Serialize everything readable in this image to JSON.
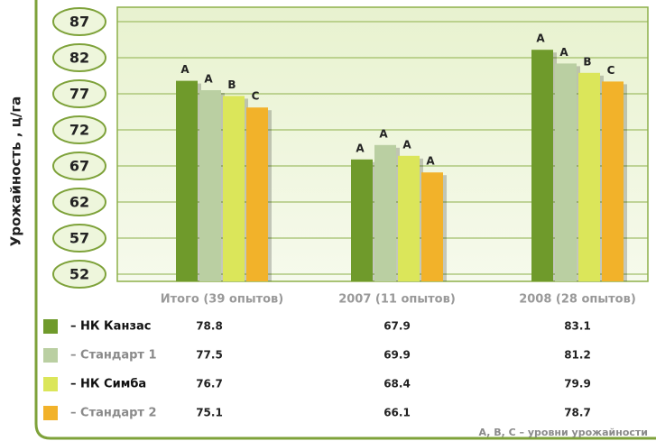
{
  "chart_data": {
    "type": "bar",
    "y_label": "Урожайность , ц/га",
    "categories": [
      "Итого (39 опытов)",
      "2007 (11 опытов)",
      "2008 (28 опытов)"
    ],
    "series": [
      {
        "name": "– НК Канзас",
        "color": "#6f9a2b",
        "text_color": "#111111",
        "values": [
          78.8,
          67.9,
          83.1
        ],
        "letters": [
          "A",
          "A",
          "A"
        ]
      },
      {
        "name": "– Стандарт 1",
        "color": "#bacfa2",
        "text_color": "#8a8a8a",
        "values": [
          77.5,
          69.9,
          81.2
        ],
        "letters": [
          "A",
          "A",
          "A"
        ]
      },
      {
        "name": "– НК Симба",
        "color": "#dbe65a",
        "text_color": "#111111",
        "values": [
          76.7,
          68.4,
          79.9
        ],
        "letters": [
          "B",
          "A",
          "B"
        ]
      },
      {
        "name": "– Стандарт 2",
        "color": "#f2b22a",
        "text_color": "#8a8a8a",
        "values": [
          75.1,
          66.1,
          78.7
        ],
        "letters": [
          "C",
          "A",
          "C"
        ]
      }
    ],
    "ylim": [
      51,
      89
    ],
    "yticks": [
      52,
      57,
      62,
      67,
      72,
      77,
      82,
      87
    ],
    "grid": true,
    "note": "A, B, C – уровни урожайности"
  }
}
